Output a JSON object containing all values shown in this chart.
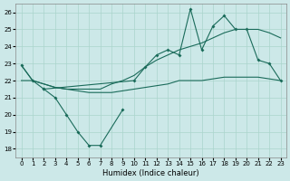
{
  "xlabel": "Humidex (Indice chaleur)",
  "xlim": [
    -0.5,
    23.5
  ],
  "ylim": [
    17.5,
    26.5
  ],
  "yticks": [
    18,
    19,
    20,
    21,
    22,
    23,
    24,
    25,
    26
  ],
  "xticks": [
    0,
    1,
    2,
    3,
    4,
    5,
    6,
    7,
    8,
    9,
    10,
    11,
    12,
    13,
    14,
    15,
    16,
    17,
    18,
    19,
    20,
    21,
    22,
    23
  ],
  "bg_color": "#cce8e8",
  "grid_color": "#aad4cc",
  "line_color": "#1a6b5a",
  "line1_x": [
    2,
    3,
    4,
    5,
    6,
    7,
    9
  ],
  "line1_y": [
    21.5,
    21.0,
    20.0,
    19.0,
    18.2,
    18.2,
    20.3
  ],
  "line2_x": [
    0,
    1,
    2,
    3,
    4,
    5,
    6,
    7,
    8,
    9,
    10,
    11,
    12,
    13,
    14,
    15,
    16,
    17,
    18,
    19,
    20,
    21,
    22,
    23
  ],
  "line2_y": [
    22.0,
    22.0,
    21.8,
    21.6,
    21.5,
    21.4,
    21.3,
    21.3,
    21.3,
    21.4,
    21.5,
    21.6,
    21.7,
    21.8,
    22.0,
    22.0,
    22.0,
    22.1,
    22.2,
    22.2,
    22.2,
    22.2,
    22.1,
    22.0
  ],
  "line3_x": [
    0,
    1,
    2,
    3,
    4,
    5,
    6,
    7,
    8,
    9,
    10,
    11,
    12,
    13,
    14,
    15,
    16,
    17,
    18,
    19,
    20,
    21,
    22,
    23
  ],
  "line3_y": [
    22.9,
    22.0,
    21.8,
    21.6,
    21.5,
    21.5,
    21.5,
    21.5,
    21.8,
    22.0,
    22.3,
    22.8,
    23.2,
    23.5,
    23.8,
    24.0,
    24.2,
    24.5,
    24.8,
    25.0,
    25.0,
    25.0,
    24.8,
    24.5
  ],
  "line4_x": [
    0,
    1,
    2,
    10,
    11,
    12,
    13,
    14,
    15,
    16,
    17,
    18,
    19,
    20,
    21,
    22,
    23
  ],
  "line4_y": [
    22.9,
    22.0,
    21.5,
    22.0,
    22.8,
    23.5,
    23.8,
    23.5,
    26.2,
    23.8,
    25.2,
    25.8,
    25.0,
    25.0,
    23.2,
    23.0,
    22.0
  ]
}
